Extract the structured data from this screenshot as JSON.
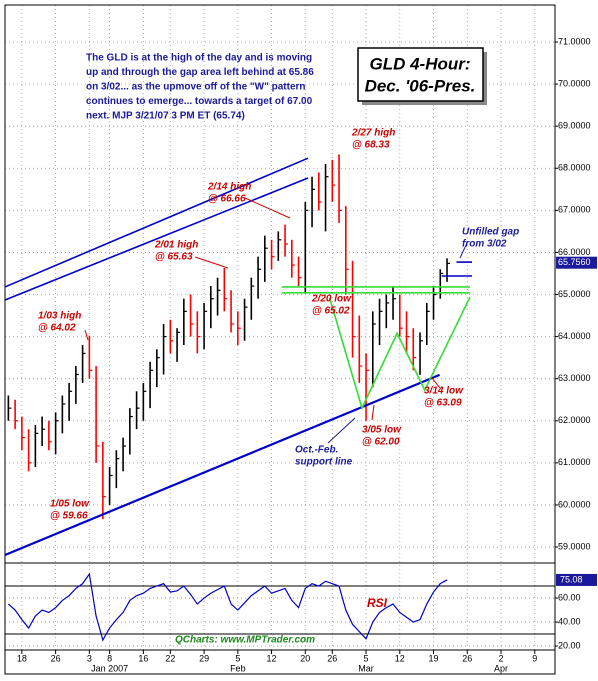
{
  "chart_data": [
    {
      "type": "ohlc",
      "title": [
        "GLD 4-Hour:",
        "Dec. '06-Pres."
      ],
      "commentary": [
        "The GLD is at the high of the day and is moving",
        "up and through the gap area left behind at 65.86",
        "on 3/02... as the upmove off of the \"W\" pattern",
        "continues to emerge... towards a target of 67.00",
        "next.  MJP 3/21/07 3 PM ET  (65.74)"
      ],
      "source": "QCharts: www.MPTrader.com",
      "x": [
        -2,
        -1,
        0,
        1,
        2,
        3,
        4,
        5,
        6,
        7,
        8,
        9,
        10,
        11,
        12,
        13,
        14,
        15,
        16,
        17,
        18,
        19,
        20,
        21,
        22,
        23,
        24,
        25,
        26,
        27,
        28,
        29,
        30,
        31,
        32,
        33,
        34,
        35,
        36,
        37,
        38,
        39,
        40,
        41,
        42,
        43,
        44,
        45,
        46,
        47,
        48,
        49,
        50,
        51,
        52,
        53,
        54,
        55,
        56,
        57,
        58,
        59,
        60,
        61,
        62,
        63
      ],
      "low": [
        62.0,
        61.8,
        61.3,
        60.8,
        60.9,
        61.4,
        61.3,
        61.2,
        61.7,
        62.0,
        62.4,
        62.9,
        63.0,
        61.0,
        59.66,
        60.0,
        60.4,
        60.8,
        61.2,
        61.8,
        62.0,
        62.3,
        62.8,
        63.1,
        63.6,
        63.4,
        63.8,
        64.0,
        63.6,
        63.7,
        64.2,
        64.5,
        64.6,
        64.1,
        63.8,
        63.9,
        64.4,
        64.9,
        65.3,
        65.6,
        65.8,
        65.9,
        65.4,
        65.2,
        65.02,
        66.6,
        67.0,
        66.5,
        67.2,
        66.7,
        65.0,
        63.5,
        62.9,
        62.0,
        62.8,
        63.8,
        64.2,
        64.4,
        64.0,
        63.6,
        63.2,
        63.09,
        63.8,
        64.4,
        64.9,
        65.3
      ],
      "high": [
        62.6,
        62.5,
        62.1,
        61.8,
        61.9,
        62.1,
        62.0,
        62.2,
        62.6,
        62.9,
        63.3,
        63.8,
        64.02,
        63.3,
        61.5,
        60.9,
        61.3,
        61.6,
        62.3,
        62.7,
        62.9,
        63.4,
        63.7,
        64.3,
        64.4,
        64.2,
        64.9,
        65.0,
        64.6,
        64.8,
        65.2,
        65.4,
        65.63,
        65.1,
        64.6,
        64.9,
        65.4,
        65.9,
        66.4,
        66.3,
        66.5,
        66.66,
        66.3,
        65.9,
        67.2,
        67.8,
        67.9,
        68.1,
        68.2,
        68.33,
        67.1,
        65.8,
        64.5,
        63.6,
        64.6,
        64.9,
        65.0,
        65.2,
        65.0,
        64.6,
        64.2,
        64.1,
        64.8,
        65.2,
        65.6,
        65.86
      ],
      "close": [
        62.3,
        62.0,
        61.6,
        61.0,
        61.7,
        61.8,
        61.5,
        62.0,
        62.4,
        62.7,
        63.1,
        63.6,
        63.2,
        61.4,
        60.2,
        60.7,
        61.1,
        61.4,
        62.1,
        62.3,
        62.7,
        63.2,
        63.5,
        64.0,
        63.9,
        64.1,
        64.6,
        64.3,
        64.0,
        64.6,
        64.9,
        65.1,
        64.9,
        64.3,
        64.2,
        64.7,
        65.2,
        65.6,
        66.1,
        65.9,
        66.3,
        66.2,
        65.7,
        65.4,
        67.0,
        67.5,
        67.2,
        67.8,
        67.6,
        67.0,
        65.6,
        64.0,
        63.3,
        63.2,
        64.3,
        64.6,
        64.8,
        64.9,
        64.2,
        64.0,
        63.5,
        63.9,
        64.6,
        65.0,
        65.5,
        65.74
      ],
      "up_color": "#000000",
      "down_color": "#ff0000",
      "xlim": [
        -2.5,
        79
      ],
      "ylim": [
        58.62,
        71.88
      ],
      "xticks": [
        {
          "value": 0,
          "label": "18"
        },
        {
          "value": 5,
          "label": "26"
        },
        {
          "value": 10,
          "label": "3"
        },
        {
          "value": 13,
          "label": "8"
        },
        {
          "value": 18,
          "label": "16"
        },
        {
          "value": 22,
          "label": "22"
        },
        {
          "value": 27,
          "label": "29"
        },
        {
          "value": 32,
          "label": "5"
        },
        {
          "value": 37,
          "label": "12"
        },
        {
          "value": 42,
          "label": "20"
        },
        {
          "value": 46,
          "label": "26"
        },
        {
          "value": 51,
          "label": "5"
        },
        {
          "value": 56,
          "label": "12"
        },
        {
          "value": 61,
          "label": "19"
        },
        {
          "value": 66,
          "label": "26"
        },
        {
          "value": 71,
          "label": "2"
        },
        {
          "value": 76,
          "label": "9"
        }
      ],
      "month_labels": [
        {
          "value": 13,
          "label": "Jan 2007"
        },
        {
          "value": 32,
          "label": "Feb"
        },
        {
          "value": 51,
          "label": "Mar"
        },
        {
          "value": 71,
          "label": "Apr"
        }
      ],
      "yticks": [
        {
          "value": 59,
          "label": "59.0000"
        },
        {
          "value": 60,
          "label": "60.0000"
        },
        {
          "value": 61,
          "label": "61.0000"
        },
        {
          "value": 62,
          "label": "62.0000"
        },
        {
          "value": 63,
          "label": "63.0000"
        },
        {
          "value": 64,
          "label": "64.0000"
        },
        {
          "value": 65,
          "label": "65.0000"
        },
        {
          "value": 66,
          "label": "66.0000"
        },
        {
          "value": 67,
          "label": "67.0000"
        },
        {
          "value": 68,
          "label": "68.0000"
        },
        {
          "value": 69,
          "label": "69.0000"
        },
        {
          "value": 70,
          "label": "70.0000"
        },
        {
          "value": 71,
          "label": "71.0000"
        }
      ],
      "grid": true,
      "last_label": {
        "value": 65.756,
        "label": "65.7560"
      },
      "trendlines": [
        {
          "color": "#0000cc",
          "points": [
            [
              -2.5,
              65.18
            ],
            [
              42.4,
              68.24
            ]
          ]
        },
        {
          "color": "#0000cc",
          "points": [
            [
              -2.5,
              64.87
            ],
            [
              42.4,
              67.77
            ]
          ]
        },
        {
          "color": "#0000cc",
          "points": [
            [
              -2.5,
              58.81
            ],
            [
              61.9,
              63.09
            ]
          ]
        },
        {
          "color": "#33dd33",
          "points": [
            [
              45.6,
              64.92
            ],
            [
              50.4,
              62.3
            ],
            [
              55.6,
              64.08
            ],
            [
              59.7,
              62.73
            ],
            [
              66.4,
              64.94
            ]
          ]
        },
        {
          "color": "#33dd33",
          "points": [
            [
              38.5,
              65.18
            ],
            [
              66.4,
              65.18
            ]
          ]
        },
        {
          "color": "#33dd33",
          "points": [
            [
              38.5,
              65.04
            ],
            [
              66.4,
              65.04
            ]
          ]
        },
        {
          "color": "#0000cc",
          "points": [
            [
              64.4,
              65.77
            ],
            [
              66.7,
              65.77
            ]
          ]
        },
        {
          "color": "#0000cc",
          "points": [
            [
              62.2,
              65.44
            ],
            [
              66.7,
              65.44
            ]
          ]
        }
      ],
      "callouts": [
        {
          "color": "#cc0000",
          "lines": [
            "2/27 high",
            "@ 68.33"
          ]
        },
        {
          "color": "#cc0000",
          "lines": [
            "2/14 high",
            "@ 66.66"
          ]
        },
        {
          "color": "#cc0000",
          "lines": [
            "2/01 high",
            "@ 65.63"
          ]
        },
        {
          "color": "#cc0000",
          "lines": [
            "1/03 high",
            "@ 64.02"
          ]
        },
        {
          "color": "#cc0000",
          "lines": [
            "1/05 low",
            "@ 59.66"
          ]
        },
        {
          "color": "#cc0000",
          "lines": [
            "2/20 low",
            "@ 65.02"
          ]
        },
        {
          "color": "#cc0000",
          "lines": [
            "3/05 low",
            "@ 62.00"
          ]
        },
        {
          "color": "#cc0000",
          "lines": [
            "3/14 low",
            "@ 63.09"
          ]
        },
        {
          "color": "#1a1a9c",
          "lines": [
            "Unfilled gap",
            "from 3/02"
          ]
        },
        {
          "color": "#1a1a9c",
          "lines": [
            "Oct.-Feb.",
            "support line"
          ]
        }
      ]
    },
    {
      "type": "line",
      "name": "RSI",
      "color": "#0000cc",
      "x": [
        -2,
        -1,
        0,
        1,
        2,
        3,
        4,
        5,
        6,
        7,
        8,
        9,
        10,
        11,
        12,
        13,
        14,
        15,
        16,
        17,
        18,
        19,
        20,
        21,
        22,
        23,
        24,
        25,
        26,
        27,
        28,
        29,
        30,
        31,
        32,
        33,
        34,
        35,
        36,
        37,
        38,
        39,
        40,
        41,
        42,
        43,
        44,
        45,
        46,
        47,
        48,
        49,
        50,
        51,
        52,
        53,
        54,
        55,
        56,
        57,
        58,
        59,
        60,
        61,
        62,
        63
      ],
      "values": [
        55,
        50,
        42,
        35,
        45,
        50,
        48,
        52,
        58,
        62,
        68,
        72,
        80,
        45,
        25,
        35,
        42,
        48,
        58,
        62,
        64,
        68,
        70,
        72,
        65,
        66,
        70,
        63,
        55,
        60,
        64,
        67,
        70,
        55,
        50,
        56,
        62,
        66,
        70,
        64,
        66,
        68,
        58,
        52,
        68,
        72,
        70,
        74,
        72,
        70,
        50,
        38,
        32,
        26,
        40,
        48,
        52,
        55,
        48,
        44,
        40,
        42,
        55,
        65,
        72,
        75.08
      ],
      "xlim": [
        -2.5,
        79
      ],
      "ylim": [
        16.7,
        89.2
      ],
      "yticks": [
        {
          "value": 20,
          "label": "20.00"
        },
        {
          "value": 40,
          "label": "40.00"
        },
        {
          "value": 60,
          "label": "60.00"
        }
      ],
      "levels": [
        30,
        70
      ],
      "last_label": 75.08
    }
  ]
}
